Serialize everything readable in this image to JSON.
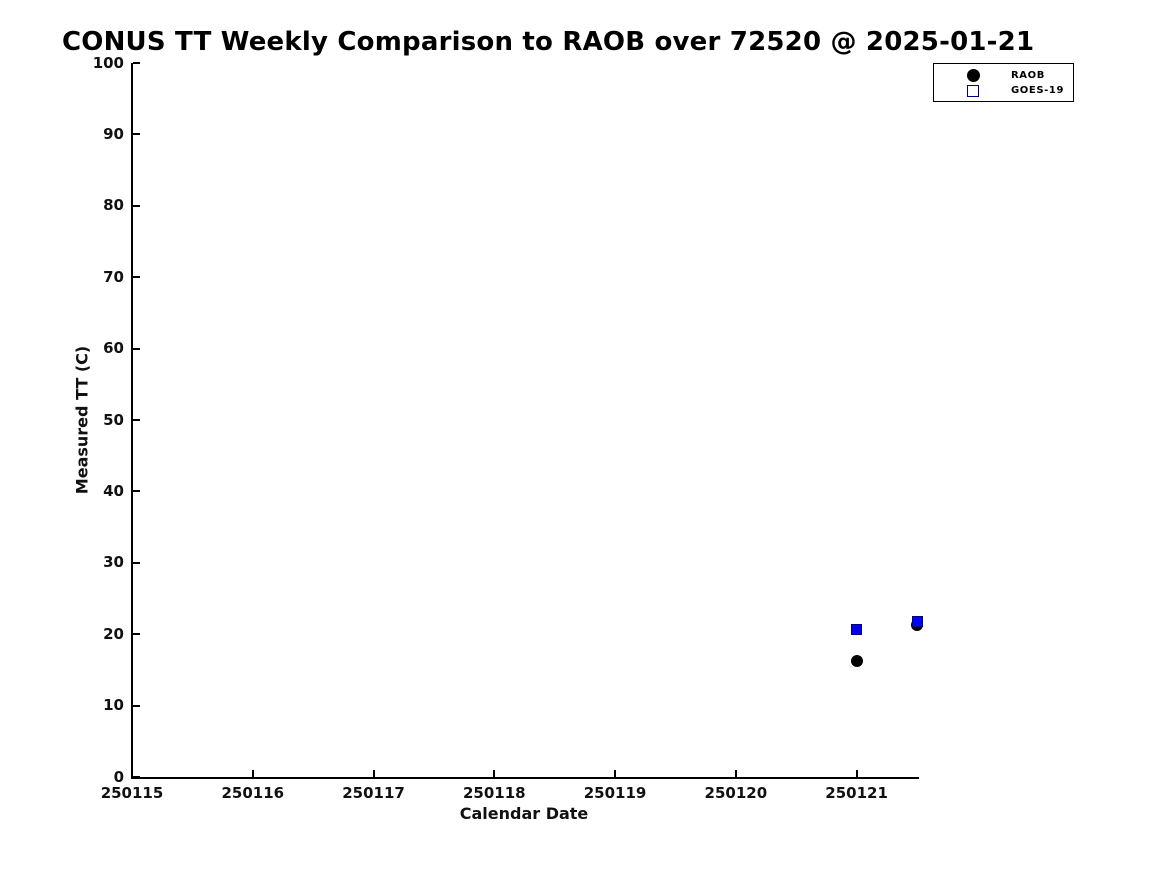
{
  "title": "CONUS TT Weekly Comparison to RAOB over 72520 @ 2025-01-21",
  "colors": {
    "raob": "#000000",
    "goes19": "#0202f0",
    "axis": "#000000",
    "background": "#ffffff"
  },
  "chart_data": {
    "type": "scatter",
    "title": "CONUS TT Weekly Comparison to RAOB over 72520 @ 2025-01-21",
    "xlabel": "Calendar Date",
    "ylabel": "Measured TT (C)",
    "xlim": [
      250115,
      250121.5
    ],
    "ylim": [
      0,
      100
    ],
    "xticks": [
      250115,
      250116,
      250117,
      250118,
      250119,
      250120,
      250121
    ],
    "yticks": [
      0,
      10,
      20,
      30,
      40,
      50,
      60,
      70,
      80,
      90,
      100
    ],
    "grid": false,
    "legend_position": "top-right-outside",
    "series": [
      {
        "name": "RAOB",
        "marker": "circle",
        "color": "#000000",
        "points": [
          [
            250121.0,
            16.2
          ],
          [
            250121.5,
            21.3
          ]
        ]
      },
      {
        "name": "GOES-19",
        "marker": "square",
        "color": "#0202f0",
        "points": [
          [
            250121.0,
            20.7
          ],
          [
            250121.5,
            21.8
          ]
        ]
      }
    ]
  }
}
